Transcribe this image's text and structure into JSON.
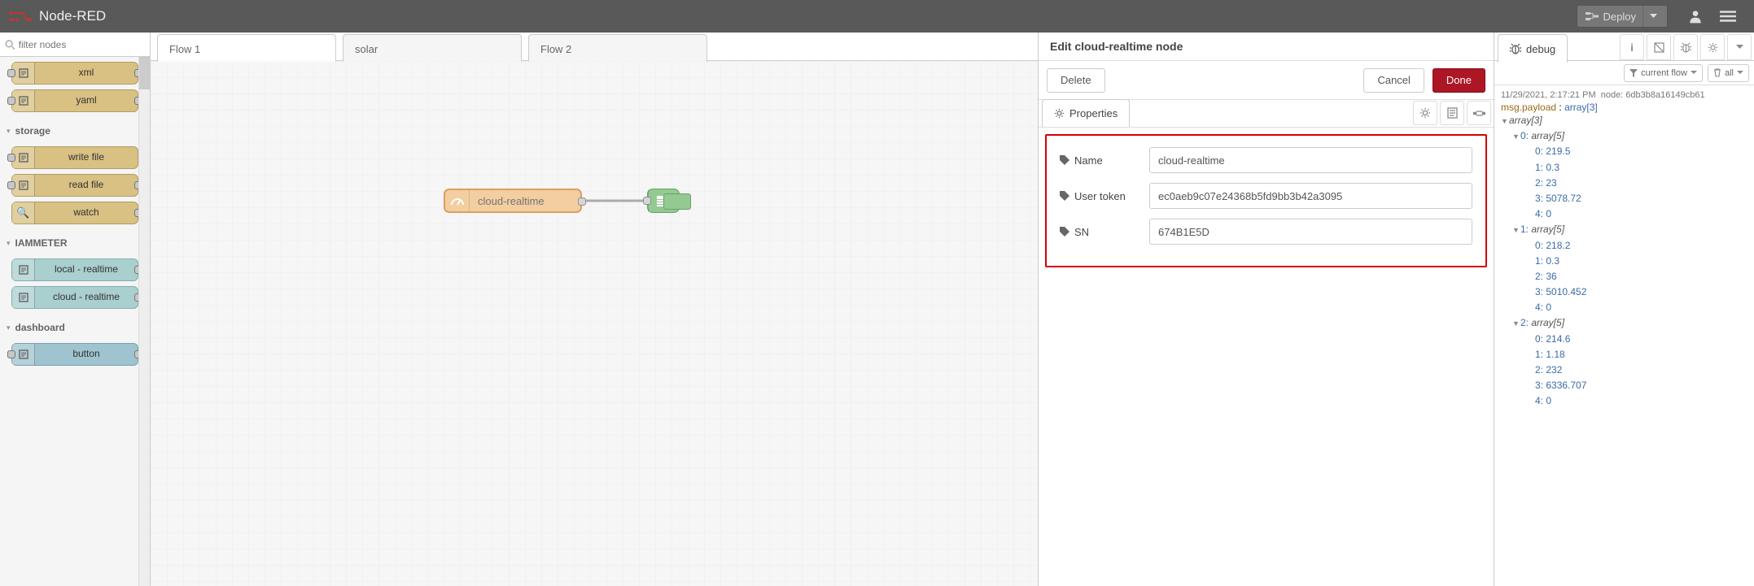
{
  "app": {
    "title": "Node-RED"
  },
  "header": {
    "deploy_label": "Deploy"
  },
  "palette": {
    "filter_placeholder": "filter nodes",
    "parser_nodes": [
      {
        "label": "xml",
        "ports": "both"
      },
      {
        "label": "yaml",
        "ports": "both"
      }
    ],
    "categories": [
      {
        "name": "storage",
        "nodes": [
          {
            "label": "write file",
            "ports": "left",
            "class": "file"
          },
          {
            "label": "read file",
            "ports": "both",
            "class": "file"
          },
          {
            "label": "watch",
            "ports": "right",
            "class": "file",
            "iconText": "🔍"
          }
        ]
      },
      {
        "name": "IAMMETER",
        "nodes": [
          {
            "label": "local - realtime",
            "ports": "right",
            "class": "iam"
          },
          {
            "label": "cloud - realtime",
            "ports": "right",
            "class": "iam"
          }
        ]
      },
      {
        "name": "dashboard",
        "nodes": [
          {
            "label": "button",
            "ports": "both",
            "class": "dash"
          }
        ]
      }
    ]
  },
  "tabs": [
    {
      "label": "Flow 1",
      "active": true
    },
    {
      "label": "solar",
      "active": false
    },
    {
      "label": "Flow 2",
      "active": false
    }
  ],
  "flow": {
    "node_label": "cloud-realtime"
  },
  "tray": {
    "title": "Edit cloud-realtime node",
    "delete_label": "Delete",
    "cancel_label": "Cancel",
    "done_label": "Done",
    "tab_label": "Properties",
    "fields": {
      "name": {
        "label": "Name",
        "value": "cloud-realtime"
      },
      "token": {
        "label": "User token",
        "value": "ec0aeb9c07e24368b5fd9bb3b42a3095"
      },
      "sn": {
        "label": "SN",
        "value": "674B1E5D"
      }
    }
  },
  "sidebar": {
    "tab_label": "debug",
    "filter_a": "current flow",
    "filter_b": "all",
    "msg": {
      "time": "11/29/2021, 2:17:21 PM",
      "node": "node: 6db3b8a16149cb61",
      "topic_key": "msg.payload",
      "topic_type": "array[3]"
    },
    "payload": [
      [
        219.5,
        0.3,
        23,
        5078.72,
        0
      ],
      [
        218.2,
        0.3,
        36,
        5010.452,
        0
      ],
      [
        214.6,
        1.18,
        232,
        6336.707,
        0
      ]
    ]
  },
  "colors": {
    "accent": "#ad1625",
    "highlight_box": "#d40000"
  }
}
